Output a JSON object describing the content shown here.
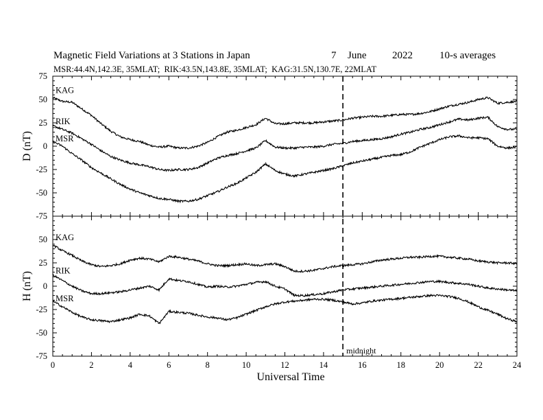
{
  "header": {
    "title": "Magnetic Field Variations at 3 Stations in Japan",
    "day": "7",
    "month": "June",
    "year": "2022",
    "averaging": "10-s averages",
    "stations_line": "MSR:44.4N,142.3E, 35MLAT;  RIK:43.5N,143.8E, 35MLAT;  KAG:31.5N,130.7E, 22MLAT"
  },
  "chart_data": [
    {
      "type": "line",
      "panel": "top",
      "ylabel": "D (nT)",
      "ylim": [
        -75,
        75
      ],
      "yticks": [
        75,
        50,
        25,
        0,
        -25,
        -50,
        -75
      ],
      "xlim": [
        0,
        24
      ],
      "grid": false,
      "series": [
        {
          "name": "KAG",
          "x": [
            0,
            0.5,
            1,
            1.5,
            2,
            2.5,
            3,
            3.5,
            4,
            4.5,
            5,
            5.5,
            6,
            6.5,
            7,
            7.5,
            8,
            8.5,
            9,
            9.5,
            10,
            10.5,
            11,
            11.5,
            12,
            12.5,
            13,
            13.5,
            14,
            14.5,
            15,
            15.5,
            16,
            16.5,
            17,
            17.5,
            18,
            18.5,
            19,
            19.5,
            20,
            20.5,
            21,
            21.5,
            22,
            22.5,
            23,
            23.5,
            24
          ],
          "y": [
            52,
            48,
            47,
            40,
            33,
            24,
            16,
            10,
            7,
            5,
            1,
            -1,
            0,
            -2,
            -2,
            0,
            4,
            10,
            15,
            17,
            20,
            23,
            30,
            24,
            24,
            25,
            25,
            25,
            26,
            27,
            28,
            30,
            31,
            32,
            32,
            33,
            34,
            34,
            35,
            37,
            40,
            43,
            45,
            47,
            50,
            52,
            46,
            47,
            48
          ]
        },
        {
          "name": "RIK",
          "x": [
            0,
            0.5,
            1,
            1.5,
            2,
            2.5,
            3,
            3.5,
            4,
            4.5,
            5,
            5.5,
            6,
            6.5,
            7,
            7.5,
            8,
            8.5,
            9,
            9.5,
            10,
            10.5,
            11,
            11.5,
            12,
            12.5,
            13,
            13.5,
            14,
            14.5,
            15,
            15.5,
            16,
            16.5,
            17,
            17.5,
            18,
            18.5,
            19,
            19.5,
            20,
            20.5,
            21,
            21.5,
            22,
            22.5,
            23,
            23.5,
            24
          ],
          "y": [
            22,
            18,
            14,
            8,
            2,
            -5,
            -11,
            -15,
            -18,
            -20,
            -22,
            -25,
            -26,
            -25,
            -25,
            -23,
            -18,
            -13,
            -10,
            -8,
            -5,
            -2,
            6,
            -1,
            -2,
            -2,
            -1,
            -1,
            0,
            2,
            3,
            5,
            6,
            7,
            8,
            10,
            13,
            15,
            18,
            20,
            23,
            26,
            29,
            28,
            30,
            31,
            21,
            18,
            18
          ]
        },
        {
          "name": "MSR",
          "x": [
            0,
            0.5,
            1,
            1.5,
            2,
            2.5,
            3,
            3.5,
            4,
            4.5,
            5,
            5.5,
            6,
            6.5,
            7,
            7.5,
            8,
            8.5,
            9,
            9.5,
            10,
            10.5,
            11,
            11.5,
            12,
            12.5,
            13,
            13.5,
            14,
            14.5,
            15,
            15.5,
            16,
            16.5,
            17,
            17.5,
            18,
            18.5,
            19,
            19.5,
            20,
            20.5,
            21,
            21.5,
            22,
            22.5,
            23,
            23.5,
            24
          ],
          "y": [
            5,
            0,
            -8,
            -15,
            -23,
            -29,
            -35,
            -41,
            -46,
            -50,
            -53,
            -56,
            -57,
            -59,
            -59,
            -57,
            -53,
            -49,
            -44,
            -40,
            -34,
            -28,
            -19,
            -26,
            -30,
            -32,
            -30,
            -28,
            -26,
            -24,
            -21,
            -18,
            -16,
            -14,
            -12,
            -10,
            -9,
            -6,
            -1,
            3,
            7,
            10,
            11,
            9,
            9,
            8,
            0,
            -2,
            -1
          ]
        }
      ]
    },
    {
      "type": "line",
      "panel": "bottom",
      "ylabel": "H (nT)",
      "ylim": [
        -75,
        75
      ],
      "yticks": [
        50,
        25,
        0,
        -25,
        -50,
        -75
      ],
      "xlim": [
        0,
        24
      ],
      "xticks": [
        0,
        2,
        4,
        6,
        8,
        10,
        12,
        14,
        16,
        18,
        20,
        22,
        24
      ],
      "xlabel": "Universal Time",
      "grid": false,
      "series": [
        {
          "name": "KAG",
          "x": [
            0,
            0.5,
            1,
            1.5,
            2,
            2.5,
            3,
            3.5,
            4,
            4.5,
            5,
            5.5,
            6,
            6.5,
            7,
            7.5,
            8,
            8.5,
            9,
            9.5,
            10,
            10.5,
            11,
            11.5,
            12,
            12.5,
            13,
            13.5,
            14,
            14.5,
            15,
            15.5,
            16,
            16.5,
            17,
            17.5,
            18,
            18.5,
            19,
            19.5,
            20,
            20.5,
            21,
            21.5,
            22,
            22.5,
            23,
            23.5,
            24
          ],
          "y": [
            44,
            38,
            33,
            27,
            23,
            21,
            22,
            24,
            28,
            30,
            29,
            26,
            32,
            31,
            29,
            27,
            24,
            22,
            22,
            23,
            24,
            22,
            23,
            24,
            21,
            16,
            16,
            17,
            19,
            21,
            22,
            23,
            24,
            26,
            28,
            29,
            30,
            31,
            31,
            32,
            32,
            31,
            30,
            29,
            27,
            26,
            25,
            25,
            24
          ]
        },
        {
          "name": "RIK",
          "x": [
            0,
            0.5,
            1,
            1.5,
            2,
            2.5,
            3,
            3.5,
            4,
            4.5,
            5,
            5.5,
            6,
            6.5,
            7,
            7.5,
            8,
            8.5,
            9,
            9.5,
            10,
            10.5,
            11,
            11.5,
            12,
            12.5,
            13,
            13.5,
            14,
            14.5,
            15,
            15.5,
            16,
            16.5,
            17,
            17.5,
            18,
            18.5,
            19,
            19.5,
            20,
            20.5,
            21,
            21.5,
            22,
            22.5,
            23,
            23.5,
            24
          ],
          "y": [
            12,
            6,
            0,
            -5,
            -8,
            -8,
            -7,
            -6,
            -4,
            -2,
            0,
            -4,
            8,
            6,
            5,
            2,
            -1,
            0,
            -1,
            0,
            2,
            4,
            5,
            0,
            -3,
            -10,
            -10,
            -9,
            -8,
            -6,
            -4,
            -3,
            -2,
            -1,
            0,
            1,
            2,
            3,
            4,
            5,
            5,
            4,
            3,
            2,
            0,
            -2,
            -3,
            -4,
            -5
          ]
        },
        {
          "name": "MSR",
          "x": [
            0,
            0.5,
            1,
            1.5,
            2,
            2.5,
            3,
            3.5,
            4,
            4.5,
            5,
            5.5,
            6,
            6.5,
            7,
            7.5,
            8,
            8.5,
            9,
            9.5,
            10,
            10.5,
            11,
            11.5,
            12,
            12.5,
            13,
            13.5,
            14,
            14.5,
            15,
            15.5,
            16,
            16.5,
            17,
            17.5,
            18,
            18.5,
            19,
            19.5,
            20,
            20.5,
            21,
            21.5,
            22,
            22.5,
            23,
            23.5,
            24
          ],
          "y": [
            -16,
            -22,
            -28,
            -33,
            -36,
            -37,
            -38,
            -36,
            -34,
            -30,
            -32,
            -40,
            -27,
            -28,
            -29,
            -31,
            -33,
            -34,
            -36,
            -34,
            -30,
            -26,
            -22,
            -19,
            -17,
            -16,
            -15,
            -14,
            -14,
            -15,
            -17,
            -19,
            -18,
            -16,
            -15,
            -14,
            -13,
            -12,
            -11,
            -10,
            -10,
            -11,
            -13,
            -17,
            -22,
            -26,
            -30,
            -35,
            -38
          ]
        }
      ]
    }
  ],
  "annotations": {
    "midnight_label": "midnight",
    "midnight_ut": 15
  }
}
